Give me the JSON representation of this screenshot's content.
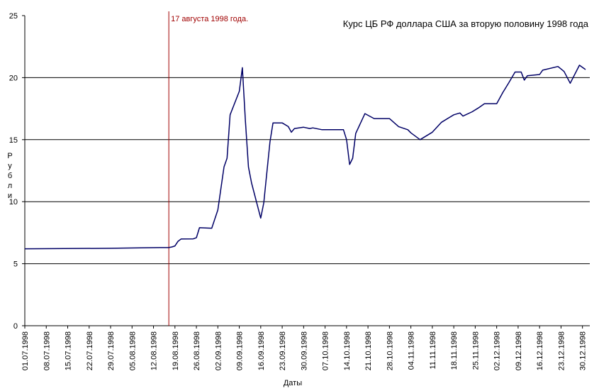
{
  "chart_data": {
    "type": "line",
    "title": "Курс ЦБ РФ доллара США за вторую половину 1998 года",
    "y_label": "Рубли",
    "x_label": "Даты",
    "xlim": [
      "01.07.1998",
      "31.12.1998"
    ],
    "xticks": [
      "01.07.1998",
      "08.07.1998",
      "15.07.1998",
      "22.07.1998",
      "29.07.1998",
      "05.08.1998",
      "12.08.1998",
      "19.08.1998",
      "26.08.1998",
      "02.09.1998",
      "09.09.1998",
      "16.09.1998",
      "23.09.1998",
      "30.09.1998",
      "07.10.1998",
      "14.10.1998",
      "21.10.1998",
      "28.10.1998",
      "04.11.1998",
      "11.11.1998",
      "18.11.1998",
      "25.11.1998",
      "02.12.1998",
      "09.12.1998",
      "16.12.1998",
      "23.12.1998",
      "30.12.1998"
    ],
    "ylim": [
      0,
      25
    ],
    "yticks": [
      0,
      5,
      10,
      15,
      20,
      25
    ],
    "grid": true,
    "annotations": [
      {
        "x": "17.08.1998",
        "label": "17 августа 1998 года.",
        "color": "#a00000"
      }
    ],
    "series": [
      {
        "name": "Курс",
        "color": "#000066",
        "x": [
          "01.07.1998",
          "29.07.1998",
          "14.08.1998",
          "17.08.1998",
          "18.08.1998",
          "19.08.1998",
          "20.08.1998",
          "21.08.1998",
          "25.08.1998",
          "26.08.1998",
          "27.08.1998",
          "31.08.1998",
          "02.09.1998",
          "04.09.1998",
          "05.09.1998",
          "06.09.1998",
          "09.09.1998",
          "10.09.1998",
          "11.09.1998",
          "12.09.1998",
          "13.09.1998",
          "16.09.1998",
          "17.09.1998",
          "19.09.1998",
          "20.09.1998",
          "23.09.1998",
          "25.09.1998",
          "26.09.1998",
          "27.09.1998",
          "30.09.1998",
          "02.10.1998",
          "03.10.1998",
          "06.10.1998",
          "13.10.1998",
          "14.10.1998",
          "15.10.1998",
          "16.10.1998",
          "17.10.1998",
          "20.10.1998",
          "23.10.1998",
          "28.10.1998",
          "31.10.1998",
          "03.11.1998",
          "04.11.1998",
          "07.11.1998",
          "11.11.1998",
          "14.11.1998",
          "18.11.1998",
          "20.11.1998",
          "21.11.1998",
          "24.11.1998",
          "26.11.1998",
          "28.11.1998",
          "02.12.1998",
          "04.12.1998",
          "06.12.1998",
          "08.12.1998",
          "10.12.1998",
          "11.12.1998",
          "12.12.1998",
          "16.12.1998",
          "17.12.1998",
          "22.12.1998",
          "24.12.1998",
          "26.12.1998",
          "29.12.1998",
          "31.12.1998"
        ],
        "values": [
          6.2,
          6.24,
          6.3,
          6.3,
          6.35,
          6.43,
          6.8,
          6.99,
          7.0,
          7.1,
          7.9,
          7.86,
          9.33,
          12.8,
          13.5,
          17.0,
          18.9,
          20.8,
          16.5,
          12.8,
          11.5,
          8.67,
          9.9,
          14.8,
          16.35,
          16.35,
          16.05,
          15.6,
          15.9,
          16.0,
          15.9,
          15.95,
          15.8,
          15.8,
          15.0,
          13.0,
          13.5,
          15.5,
          17.1,
          16.7,
          16.7,
          16.05,
          15.8,
          15.55,
          15.0,
          15.6,
          16.4,
          17.0,
          17.15,
          16.9,
          17.25,
          17.55,
          17.9,
          17.9,
          18.8,
          19.6,
          20.45,
          20.45,
          19.8,
          20.15,
          20.25,
          20.6,
          20.9,
          20.5,
          19.55,
          21.0,
          20.65
        ]
      }
    ]
  }
}
